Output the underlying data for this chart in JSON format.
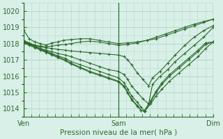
{
  "title": "Pression niveau de la mer( hPa )",
  "bg_color": "#d8f0e8",
  "grid_color": "#b8d8c8",
  "line_color": "#2d6a2d",
  "ylim": [
    1013.5,
    1020.5
  ],
  "yticks": [
    1014,
    1015,
    1016,
    1017,
    1018,
    1019,
    1020
  ],
  "xtick_labels": [
    "Ven",
    "Sam",
    "Dim"
  ],
  "xtick_positions": [
    0.0,
    0.5,
    1.0
  ],
  "series": [
    [
      0.0,
      1018.85,
      0.03,
      1018.3,
      0.06,
      1018.1,
      0.09,
      1018.0,
      0.12,
      1017.9,
      0.15,
      1018.05,
      0.18,
      1018.1,
      0.21,
      1018.2,
      0.25,
      1018.25,
      0.3,
      1018.3,
      0.35,
      1018.3,
      0.4,
      1018.2,
      0.45,
      1018.1,
      0.5,
      1018.0,
      0.55,
      1018.05,
      0.6,
      1018.1,
      0.65,
      1018.2,
      0.7,
      1018.3,
      0.75,
      1018.5,
      0.8,
      1018.7,
      0.85,
      1018.9,
      0.9,
      1019.1,
      0.95,
      1019.3,
      1.0,
      1019.5
    ],
    [
      0.0,
      1018.15,
      0.03,
      1018.0,
      0.06,
      1017.9,
      0.09,
      1017.85,
      0.12,
      1017.8,
      0.15,
      1017.85,
      0.18,
      1017.9,
      0.22,
      1017.95,
      0.25,
      1018.0,
      0.3,
      1018.1,
      0.35,
      1018.15,
      0.4,
      1018.1,
      0.45,
      1018.0,
      0.5,
      1017.9,
      0.55,
      1017.95,
      0.6,
      1018.05,
      0.65,
      1018.2,
      0.7,
      1018.4,
      0.75,
      1018.6,
      0.8,
      1018.8,
      0.85,
      1019.0,
      0.9,
      1019.2,
      0.95,
      1019.35,
      1.0,
      1019.5
    ],
    [
      0.0,
      1018.2,
      0.03,
      1018.05,
      0.06,
      1017.9,
      0.09,
      1017.8,
      0.12,
      1017.75,
      0.15,
      1017.7,
      0.18,
      1017.65,
      0.22,
      1017.6,
      0.25,
      1017.55,
      0.3,
      1017.5,
      0.35,
      1017.45,
      0.4,
      1017.4,
      0.45,
      1017.35,
      0.5,
      1017.3,
      0.53,
      1017.2,
      0.55,
      1017.0,
      0.57,
      1016.7,
      0.6,
      1016.2,
      0.63,
      1015.8,
      0.66,
      1015.4,
      0.68,
      1015.9,
      0.72,
      1016.3,
      0.76,
      1016.8,
      0.8,
      1017.3,
      0.85,
      1017.9,
      0.9,
      1018.4,
      0.95,
      1018.8,
      1.0,
      1019.1
    ],
    [
      0.0,
      1018.1,
      0.03,
      1018.0,
      0.06,
      1017.85,
      0.09,
      1017.7,
      0.12,
      1017.6,
      0.15,
      1017.5,
      0.18,
      1017.4,
      0.22,
      1017.3,
      0.25,
      1017.2,
      0.3,
      1017.0,
      0.35,
      1016.8,
      0.4,
      1016.6,
      0.45,
      1016.4,
      0.5,
      1016.3,
      0.53,
      1016.1,
      0.55,
      1015.8,
      0.57,
      1015.4,
      0.6,
      1015.0,
      0.63,
      1014.6,
      0.66,
      1014.3,
      0.68,
      1015.5,
      0.72,
      1016.0,
      0.76,
      1016.4,
      0.8,
      1016.9,
      0.85,
      1017.4,
      0.9,
      1017.9,
      0.95,
      1018.4,
      1.0,
      1019.0
    ],
    [
      0.0,
      1018.15,
      0.03,
      1018.0,
      0.06,
      1017.85,
      0.09,
      1017.7,
      0.12,
      1017.55,
      0.15,
      1017.4,
      0.18,
      1017.25,
      0.22,
      1017.1,
      0.25,
      1016.9,
      0.3,
      1016.7,
      0.35,
      1016.5,
      0.4,
      1016.3,
      0.45,
      1016.1,
      0.5,
      1015.9,
      0.53,
      1015.6,
      0.55,
      1015.2,
      0.57,
      1014.8,
      0.6,
      1014.4,
      0.62,
      1014.1,
      0.64,
      1013.85,
      0.67,
      1014.3,
      0.7,
      1014.8,
      0.73,
      1015.2,
      0.77,
      1015.7,
      0.82,
      1016.2,
      0.87,
      1016.7,
      0.92,
      1017.2,
      0.96,
      1017.7,
      1.0,
      1018.1
    ],
    [
      0.0,
      1018.1,
      0.03,
      1017.95,
      0.06,
      1017.8,
      0.09,
      1017.65,
      0.12,
      1017.5,
      0.15,
      1017.35,
      0.18,
      1017.2,
      0.22,
      1017.0,
      0.25,
      1016.8,
      0.3,
      1016.55,
      0.35,
      1016.3,
      0.4,
      1016.1,
      0.45,
      1015.9,
      0.5,
      1015.7,
      0.53,
      1015.4,
      0.55,
      1015.0,
      0.57,
      1014.6,
      0.6,
      1014.2,
      0.62,
      1013.9,
      0.64,
      1013.85,
      0.67,
      1014.4,
      0.7,
      1015.0,
      0.73,
      1015.5,
      0.77,
      1016.0,
      0.82,
      1016.5,
      0.87,
      1017.0,
      0.92,
      1017.5,
      0.96,
      1017.95,
      1.0,
      1018.1
    ],
    [
      0.0,
      1018.05,
      0.03,
      1017.9,
      0.06,
      1017.75,
      0.09,
      1017.6,
      0.12,
      1017.45,
      0.15,
      1017.3,
      0.18,
      1017.15,
      0.22,
      1016.95,
      0.25,
      1016.75,
      0.3,
      1016.5,
      0.35,
      1016.25,
      0.4,
      1016.05,
      0.45,
      1015.85,
      0.5,
      1015.65,
      0.53,
      1015.35,
      0.55,
      1014.95,
      0.57,
      1014.55,
      0.6,
      1014.15,
      0.62,
      1013.9,
      0.635,
      1013.85,
      0.67,
      1014.5,
      0.7,
      1015.1,
      0.73,
      1015.6,
      0.77,
      1016.1,
      0.82,
      1016.6,
      0.87,
      1017.1,
      0.92,
      1017.6,
      0.96,
      1018.05,
      1.0,
      1018.1
    ]
  ]
}
